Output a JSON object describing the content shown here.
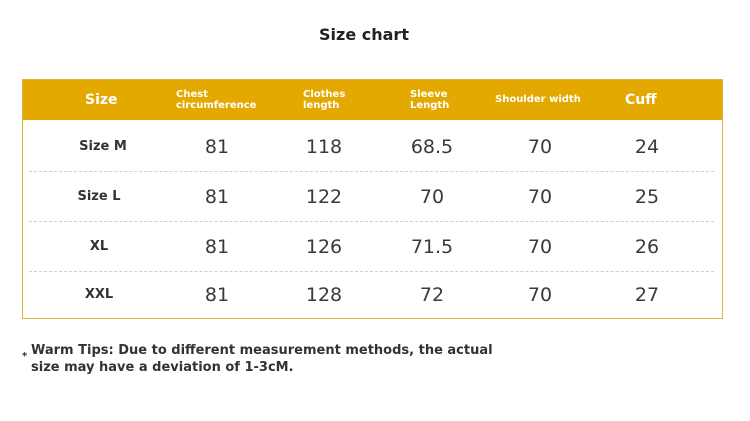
{
  "title": "Size chart",
  "headers": {
    "size": "Size",
    "chest": [
      "Chest",
      "circumference"
    ],
    "length": [
      "Clothes",
      "length"
    ],
    "sleeve": [
      "Sleeve",
      "Length"
    ],
    "shoulder": "Shoulder width",
    "cuff": "Cuff"
  },
  "rows": [
    {
      "size": "Size M",
      "chest": "81",
      "length": "118",
      "sleeve": "68.5",
      "shoulder": "70",
      "cuff": "24"
    },
    {
      "size": "Size L",
      "chest": "81",
      "length": "122",
      "sleeve": "70",
      "shoulder": "70",
      "cuff": "25"
    },
    {
      "size": "XL",
      "chest": "81",
      "length": "126",
      "sleeve": "71.5",
      "shoulder": "70",
      "cuff": "26"
    },
    {
      "size": "XXL",
      "chest": "81",
      "length": "128",
      "sleeve": "72",
      "shoulder": "70",
      "cuff": "27"
    }
  ],
  "tips": {
    "marker": "*",
    "line1": "Warm Tips: Due to different measurement methods, the actual",
    "line2": "size may have a deviation of 1-3cM."
  },
  "colors": {
    "header_bg": "#e4a900",
    "border": "#e3b23c"
  }
}
